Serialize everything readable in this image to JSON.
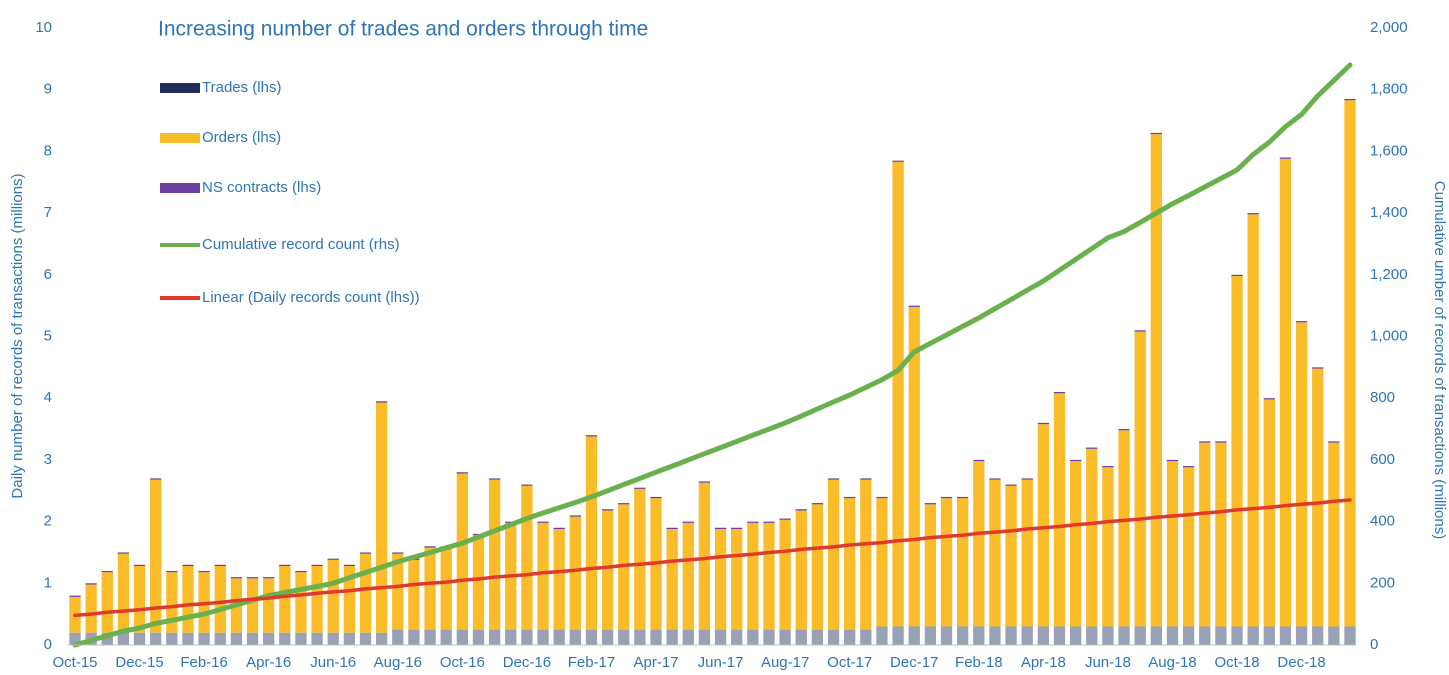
{
  "chart_data": {
    "type": "bar",
    "title": "Increasing number of trades and orders through time",
    "y_label": "Daily number of records of transactions (millions)",
    "y2_label": "Cumulative umber of records of transactions (millions)",
    "categories": [
      "Oct-15",
      null,
      null,
      null,
      "Dec-15",
      null,
      null,
      null,
      "Feb-16",
      null,
      null,
      null,
      "Apr-16",
      null,
      null,
      null,
      "Jun-16",
      null,
      null,
      null,
      "Aug-16",
      null,
      null,
      null,
      "Oct-16",
      null,
      null,
      null,
      "Dec-16",
      null,
      null,
      null,
      "Feb-17",
      null,
      null,
      null,
      "Apr-17",
      null,
      null,
      null,
      "Jun-17",
      null,
      null,
      null,
      "Aug-17",
      null,
      null,
      null,
      "Oct-17",
      null,
      null,
      null,
      "Dec-17",
      null,
      null,
      null,
      "Feb-18",
      null,
      null,
      null,
      "Apr-18",
      null,
      null,
      null,
      "Jun-18",
      null,
      null,
      null,
      "Aug-18",
      null,
      null,
      null,
      "Oct-18",
      null,
      null,
      null,
      "Dec-18",
      null,
      null,
      null
    ],
    "ylim": [
      0,
      10
    ],
    "yticks": [
      0,
      1,
      2,
      3,
      4,
      5,
      6,
      7,
      8,
      9,
      10
    ],
    "y2lim": [
      0,
      2000
    ],
    "y2ticks": [
      0,
      200,
      400,
      600,
      800,
      {
        "value": 1000,
        "label": "1,000"
      },
      {
        "value": 1200,
        "label": "1,200"
      },
      {
        "value": 1400,
        "label": "1,400"
      },
      {
        "value": 1600,
        "label": "1,600"
      },
      {
        "value": 1800,
        "label": "1,800"
      },
      {
        "value": 2000,
        "label": "2,000"
      }
    ],
    "stacked": true,
    "series": [
      {
        "name": "Trades (lhs)",
        "type": "bar",
        "color": "#1f2d5a",
        "values": [
          0.2,
          0.2,
          0.2,
          0.2,
          0.2,
          0.2,
          0.2,
          0.2,
          0.2,
          0.2,
          0.2,
          0.2,
          0.2,
          0.2,
          0.2,
          0.2,
          0.2,
          0.2,
          0.2,
          0.2,
          0.25,
          0.25,
          0.25,
          0.25,
          0.25,
          0.25,
          0.25,
          0.25,
          0.25,
          0.25,
          0.25,
          0.25,
          0.25,
          0.25,
          0.25,
          0.25,
          0.25,
          0.25,
          0.25,
          0.25,
          0.25,
          0.25,
          0.25,
          0.25,
          0.25,
          0.25,
          0.25,
          0.25,
          0.25,
          0.25,
          0.3,
          0.3,
          0.3,
          0.3,
          0.3,
          0.3,
          0.3,
          0.3,
          0.3,
          0.3,
          0.3,
          0.3,
          0.3,
          0.3,
          0.3,
          0.3,
          0.3,
          0.3,
          0.3,
          0.3,
          0.3,
          0.3,
          0.3,
          0.3,
          0.3,
          0.3,
          0.3,
          0.3,
          0.3,
          0.3
        ]
      },
      {
        "name": "Orders (lhs)",
        "type": "bar",
        "color": "#fbbc2a",
        "values": [
          0.58,
          0.78,
          0.98,
          1.28,
          1.08,
          2.48,
          0.98,
          1.08,
          0.98,
          1.08,
          0.88,
          0.88,
          0.88,
          1.08,
          0.98,
          1.08,
          1.18,
          1.08,
          1.28,
          3.73,
          1.23,
          1.13,
          1.33,
          1.33,
          2.53,
          1.53,
          2.43,
          1.73,
          2.33,
          1.73,
          1.63,
          1.83,
          3.13,
          1.93,
          2.03,
          2.28,
          2.13,
          1.63,
          1.73,
          2.38,
          1.63,
          1.63,
          1.73,
          1.73,
          1.78,
          1.93,
          2.03,
          2.43,
          2.13,
          2.43,
          2.08,
          7.53,
          5.18,
          1.98,
          2.08,
          2.08,
          2.68,
          2.38,
          2.28,
          2.38,
          3.28,
          3.78,
          2.68,
          2.88,
          2.58,
          3.18,
          4.78,
          7.98,
          2.68,
          2.58,
          2.98,
          2.98,
          5.68,
          6.68,
          3.68,
          7.58,
          4.93,
          4.18,
          2.98,
          8.53
        ]
      },
      {
        "name": "NS contracts (lhs)",
        "type": "bar",
        "color": "#6a3fa0",
        "values": [
          0.02,
          0.02,
          0.02,
          0.02,
          0.02,
          0.02,
          0.02,
          0.02,
          0.02,
          0.02,
          0.02,
          0.02,
          0.02,
          0.02,
          0.02,
          0.02,
          0.02,
          0.02,
          0.02,
          0.02,
          0.02,
          0.02,
          0.02,
          0.02,
          0.02,
          0.02,
          0.02,
          0.02,
          0.02,
          0.02,
          0.02,
          0.02,
          0.02,
          0.02,
          0.02,
          0.02,
          0.02,
          0.02,
          0.02,
          0.02,
          0.02,
          0.02,
          0.02,
          0.02,
          0.02,
          0.02,
          0.02,
          0.02,
          0.02,
          0.02,
          0.02,
          0.02,
          0.02,
          0.02,
          0.02,
          0.02,
          0.02,
          0.02,
          0.02,
          0.02,
          0.02,
          0.02,
          0.02,
          0.02,
          0.02,
          0.02,
          0.02,
          0.02,
          0.02,
          0.02,
          0.02,
          0.02,
          0.02,
          0.02,
          0.02,
          0.02,
          0.02,
          0.02,
          0.02,
          0.02
        ]
      },
      {
        "name": "Cumulative record count (rhs)",
        "type": "line",
        "axis": "y2",
        "color": "#6ab04c",
        "values": [
          0,
          15,
          30,
          45,
          55,
          70,
          80,
          90,
          100,
          115,
          130,
          145,
          160,
          170,
          180,
          190,
          200,
          218,
          235,
          252,
          270,
          285,
          300,
          315,
          330,
          350,
          370,
          390,
          410,
          428,
          445,
          462,
          480,
          500,
          520,
          540,
          560,
          580,
          600,
          620,
          640,
          660,
          680,
          700,
          720,
          742,
          765,
          788,
          810,
          835,
          860,
          890,
          950,
          978,
          1005,
          1033,
          1060,
          1090,
          1120,
          1150,
          1180,
          1215,
          1250,
          1285,
          1320,
          1340,
          1370,
          1400,
          1430,
          1457,
          1485,
          1512,
          1540,
          1590,
          1630,
          1680,
          1720,
          1780,
          1830,
          1880
        ]
      },
      {
        "name": "Linear (Daily records count (lhs))",
        "type": "line",
        "color": "#e03a2f",
        "values": [
          0.48,
          0.5,
          0.53,
          0.55,
          0.57,
          0.6,
          0.62,
          0.65,
          0.67,
          0.69,
          0.72,
          0.74,
          0.76,
          0.79,
          0.81,
          0.84,
          0.86,
          0.88,
          0.91,
          0.93,
          0.95,
          0.98,
          1.0,
          1.02,
          1.05,
          1.07,
          1.1,
          1.12,
          1.14,
          1.17,
          1.19,
          1.21,
          1.24,
          1.26,
          1.29,
          1.31,
          1.33,
          1.36,
          1.38,
          1.4,
          1.43,
          1.45,
          1.47,
          1.5,
          1.52,
          1.55,
          1.57,
          1.59,
          1.62,
          1.64,
          1.66,
          1.69,
          1.71,
          1.74,
          1.76,
          1.78,
          1.81,
          1.83,
          1.85,
          1.88,
          1.9,
          1.92,
          1.95,
          1.97,
          2.0,
          2.02,
          2.04,
          2.07,
          2.09,
          2.11,
          2.14,
          2.16,
          2.19,
          2.21,
          2.23,
          2.26,
          2.28,
          2.3,
          2.33,
          2.35
        ]
      }
    ]
  }
}
